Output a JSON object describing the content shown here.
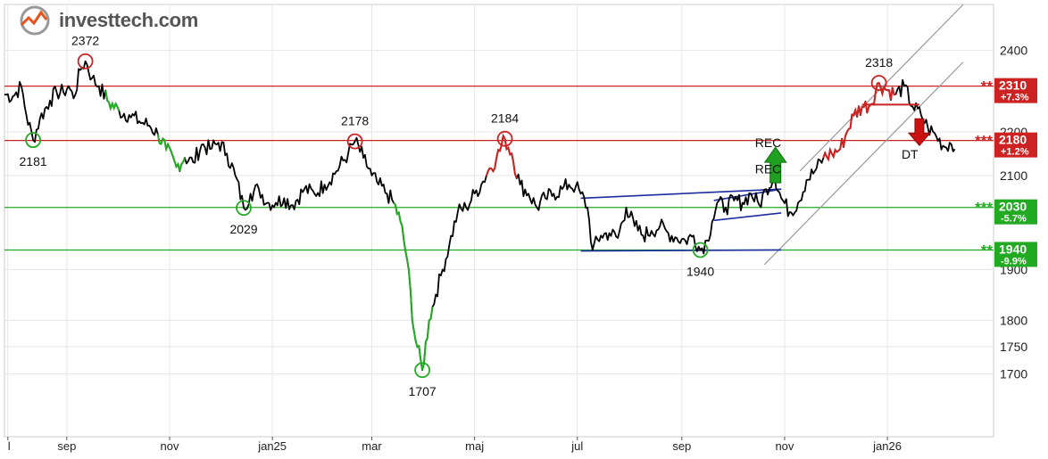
{
  "brand": {
    "name": "investtech.com"
  },
  "colors": {
    "price": "#000000",
    "up": "#22aa22",
    "down": "#cc2222",
    "resistance": "#cc2222",
    "support": "#22aa22",
    "trend_channel": "#999999",
    "rect_lines": "#1e2d9e",
    "grid": "#e6e6e6",
    "axis": "#555555"
  },
  "chart_data": {
    "type": "line",
    "y_scale": "log",
    "ylim": [
      1590,
      2520
    ],
    "xlim": [
      "2024-07-26",
      "2026-03-05"
    ],
    "y_ticks": [
      1700,
      1750,
      1800,
      1900,
      2100,
      2200,
      2400
    ],
    "x_ticks": [
      {
        "label": "l",
        "date": "2024-07-28"
      },
      {
        "label": "sep",
        "date": "2024-09-01"
      },
      {
        "label": "nov",
        "date": "2024-11-01"
      },
      {
        "label": "jan25",
        "date": "2025-01-01"
      },
      {
        "label": "mar",
        "date": "2025-03-01"
      },
      {
        "label": "maj",
        "date": "2025-05-01"
      },
      {
        "label": "jul",
        "date": "2025-07-01"
      },
      {
        "label": "sep",
        "date": "2025-09-01"
      },
      {
        "label": "nov",
        "date": "2025-11-01"
      },
      {
        "label": "jan26",
        "date": "2026-01-01"
      }
    ],
    "grid": true,
    "price": [
      [
        "2024-07-26",
        2290
      ],
      [
        "2024-07-31",
        2285
      ],
      [
        "2024-08-05",
        2310
      ],
      [
        "2024-08-08",
        2240
      ],
      [
        "2024-08-12",
        2181
      ],
      [
        "2024-08-16",
        2230
      ],
      [
        "2024-08-22",
        2275
      ],
      [
        "2024-08-26",
        2295
      ],
      [
        "2024-08-30",
        2295
      ],
      [
        "2024-09-02",
        2310
      ],
      [
        "2024-09-05",
        2280
      ],
      [
        "2024-09-09",
        2350
      ],
      [
        "2024-09-12",
        2372
      ],
      [
        "2024-09-16",
        2330
      ],
      [
        "2024-09-20",
        2310
      ],
      [
        "2024-09-26",
        2270
      ],
      [
        "2024-10-02",
        2250
      ],
      [
        "2024-10-08",
        2240
      ],
      [
        "2024-10-14",
        2225
      ],
      [
        "2024-10-20",
        2215
      ],
      [
        "2024-10-25",
        2195
      ],
      [
        "2024-10-30",
        2160
      ],
      [
        "2024-11-05",
        2120
      ],
      [
        "2024-11-10",
        2140
      ],
      [
        "2024-11-15",
        2130
      ],
      [
        "2024-11-20",
        2170
      ],
      [
        "2024-11-25",
        2160
      ],
      [
        "2024-11-30",
        2175
      ],
      [
        "2024-12-05",
        2150
      ],
      [
        "2024-12-10",
        2100
      ],
      [
        "2024-12-15",
        2029
      ],
      [
        "2024-12-19",
        2060
      ],
      [
        "2024-12-24",
        2070
      ],
      [
        "2024-12-29",
        2040
      ],
      [
        "2025-01-03",
        2040
      ],
      [
        "2025-01-08",
        2050
      ],
      [
        "2025-01-13",
        2035
      ],
      [
        "2025-01-20",
        2070
      ],
      [
        "2025-01-26",
        2060
      ],
      [
        "2025-02-01",
        2080
      ],
      [
        "2025-02-08",
        2110
      ],
      [
        "2025-02-15",
        2150
      ],
      [
        "2025-02-19",
        2178
      ],
      [
        "2025-02-24",
        2140
      ],
      [
        "2025-03-01",
        2100
      ],
      [
        "2025-03-05",
        2080
      ],
      [
        "2025-03-10",
        2060
      ],
      [
        "2025-03-14",
        2040
      ],
      [
        "2025-03-18",
        2000
      ],
      [
        "2025-03-22",
        1920
      ],
      [
        "2025-03-26",
        1780
      ],
      [
        "2025-03-31",
        1707
      ],
      [
        "2025-04-04",
        1800
      ],
      [
        "2025-04-08",
        1850
      ],
      [
        "2025-04-12",
        1900
      ],
      [
        "2025-04-16",
        1950
      ],
      [
        "2025-04-21",
        2020
      ],
      [
        "2025-04-26",
        2030
      ],
      [
        "2025-05-01",
        2060
      ],
      [
        "2025-05-05",
        2080
      ],
      [
        "2025-05-09",
        2110
      ],
      [
        "2025-05-14",
        2140
      ],
      [
        "2025-05-19",
        2184
      ],
      [
        "2025-05-23",
        2150
      ],
      [
        "2025-05-28",
        2080
      ],
      [
        "2025-06-02",
        2060
      ],
      [
        "2025-06-07",
        2030
      ],
      [
        "2025-06-12",
        2050
      ],
      [
        "2025-06-17",
        2060
      ],
      [
        "2025-06-22",
        2070
      ],
      [
        "2025-06-26",
        2080
      ],
      [
        "2025-06-30",
        2075
      ],
      [
        "2025-07-03",
        2060
      ],
      [
        "2025-07-07",
        2030
      ],
      [
        "2025-07-10",
        1940
      ],
      [
        "2025-07-15",
        1970
      ],
      [
        "2025-07-20",
        1975
      ],
      [
        "2025-07-25",
        1965
      ],
      [
        "2025-07-30",
        2030
      ],
      [
        "2025-08-04",
        1990
      ],
      [
        "2025-08-09",
        1970
      ],
      [
        "2025-08-14",
        1980
      ],
      [
        "2025-08-19",
        1990
      ],
      [
        "2025-08-24",
        1975
      ],
      [
        "2025-08-29",
        1965
      ],
      [
        "2025-09-03",
        1960
      ],
      [
        "2025-09-08",
        1970
      ],
      [
        "2025-09-12",
        1940
      ],
      [
        "2025-09-16",
        1960
      ],
      [
        "2025-09-19",
        2000
      ],
      [
        "2025-09-22",
        2040
      ],
      [
        "2025-09-27",
        2030
      ],
      [
        "2025-10-02",
        2045
      ],
      [
        "2025-10-07",
        2040
      ],
      [
        "2025-10-12",
        2060
      ],
      [
        "2025-10-17",
        2035
      ],
      [
        "2025-10-21",
        2070
      ],
      [
        "2025-10-26",
        2100
      ],
      [
        "2025-10-30",
        2050
      ],
      [
        "2025-11-04",
        2020
      ],
      [
        "2025-11-09",
        2040
      ],
      [
        "2025-11-14",
        2090
      ],
      [
        "2025-11-19",
        2110
      ],
      [
        "2025-11-24",
        2140
      ],
      [
        "2025-11-29",
        2150
      ],
      [
        "2025-12-04",
        2160
      ],
      [
        "2025-12-08",
        2200
      ],
      [
        "2025-12-12",
        2240
      ],
      [
        "2025-12-17",
        2260
      ],
      [
        "2025-12-22",
        2265
      ],
      [
        "2025-12-27",
        2318
      ],
      [
        "2026-01-01",
        2300
      ],
      [
        "2026-01-06",
        2290
      ],
      [
        "2026-01-11",
        2310
      ],
      [
        "2026-01-16",
        2260
      ],
      [
        "2026-01-21",
        2240
      ],
      [
        "2026-01-25",
        2210
      ],
      [
        "2026-01-30",
        2190
      ],
      [
        "2026-02-04",
        2165
      ],
      [
        "2026-02-07",
        2175
      ],
      [
        "2026-02-10",
        2160
      ]
    ],
    "colored_segments": [
      {
        "color": "down",
        "from": "2025-05-08",
        "to": "2025-05-26"
      },
      {
        "color": "down",
        "from": "2025-11-24",
        "to": "2026-01-06"
      },
      {
        "color": "up",
        "from": "2025-03-14",
        "to": "2025-04-06"
      },
      {
        "color": "up",
        "from": "2024-09-24",
        "to": "2024-10-02"
      },
      {
        "color": "up",
        "from": "2024-10-25",
        "to": "2024-11-10"
      }
    ],
    "levels": [
      {
        "value": 2310,
        "kind": "resistance",
        "stars": "**",
        "label": "2310",
        "pct": "+7.3%"
      },
      {
        "value": 2180,
        "kind": "resistance",
        "stars": "***",
        "label": "2180",
        "pct": "+1.2%"
      },
      {
        "value": 2030,
        "kind": "support",
        "stars": "***",
        "label": "2030",
        "pct": "-5.7%"
      },
      {
        "value": 1940,
        "kind": "support",
        "stars": "**",
        "label": "1940",
        "pct": "-9.9%"
      }
    ],
    "pivots": [
      {
        "date": "2024-08-12",
        "value": 2181,
        "kind": "low",
        "label": "2181"
      },
      {
        "date": "2024-09-12",
        "value": 2372,
        "kind": "high",
        "label": "2372"
      },
      {
        "date": "2024-12-15",
        "value": 2029,
        "kind": "low",
        "label": "2029"
      },
      {
        "date": "2025-02-19",
        "value": 2178,
        "kind": "high",
        "label": "2178"
      },
      {
        "date": "2025-03-31",
        "value": 1707,
        "kind": "low",
        "label": "1707"
      },
      {
        "date": "2025-05-19",
        "value": 2184,
        "kind": "high",
        "label": "2184"
      },
      {
        "date": "2025-09-12",
        "value": 1940,
        "kind": "low",
        "label": "1940"
      },
      {
        "date": "2025-12-27",
        "value": 2318,
        "kind": "high",
        "label": "2318"
      }
    ],
    "rectangle": {
      "top": [
        [
          "2025-07-03",
          2050
        ],
        [
          "2025-10-30",
          2070
        ]
      ],
      "bottom": [
        [
          "2025-07-03",
          1938
        ],
        [
          "2025-10-30",
          1940
        ]
      ]
    },
    "rectangle_inner": {
      "top": [
        [
          "2025-09-20",
          2045
        ],
        [
          "2025-10-30",
          2070
        ]
      ],
      "bottom": [
        [
          "2025-09-20",
          2002
        ],
        [
          "2025-10-30",
          2018
        ]
      ]
    },
    "channel": {
      "upper": [
        [
          "2025-11-10",
          2110
        ],
        [
          "2026-02-15",
          2520
        ]
      ],
      "lower": [
        [
          "2025-10-20",
          1910
        ],
        [
          "2026-02-15",
          2370
        ]
      ]
    },
    "signals": [
      {
        "type": "buy",
        "text": "REC",
        "date": "2025-10-25",
        "value": 2140
      },
      {
        "type": "buy",
        "text": "REC",
        "date": "2025-10-25",
        "value": 2105
      },
      {
        "type": "sell",
        "text": "DT",
        "date": "2026-01-20",
        "value": 2210
      }
    ],
    "rect_bar": {
      "from": "2025-12-17",
      "to": "2026-01-20",
      "value": 2265
    }
  }
}
